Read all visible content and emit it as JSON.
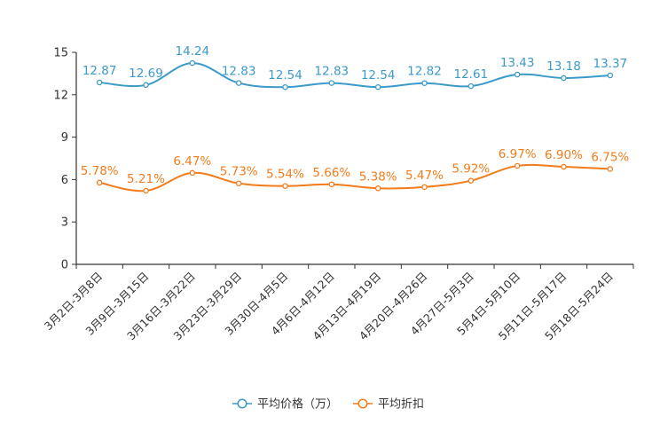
{
  "chart_data": {
    "type": "line",
    "title": "",
    "xlabel": "",
    "ylabel": "",
    "ylim": [
      0,
      15
    ],
    "yticks": [
      "0",
      "3",
      "6",
      "9",
      "12",
      "15"
    ],
    "categories": [
      "3月2日-3月8日",
      "3月9日-3月15日",
      "3月16日-3月22日",
      "3月23日-3月29日",
      "3月30日-4月5日",
      "4月6日-4月12日",
      "4月13日-4月19日",
      "4月20日-4月26日",
      "4月27日-5月3日",
      "5月4日-5月10日",
      "5月11日-5月17日",
      "5月18日-5月24日"
    ],
    "series": [
      {
        "name": "平均价格（万）",
        "color": "#3b9ac9",
        "values": [
          12.87,
          12.69,
          14.24,
          12.83,
          12.54,
          12.83,
          12.54,
          12.82,
          12.61,
          13.43,
          13.18,
          13.37
        ],
        "labels": [
          "12.87",
          "12.69",
          "14.24",
          "12.83",
          "12.54",
          "12.83",
          "12.54",
          "12.82",
          "12.61",
          "13.43",
          "13.18",
          "13.37"
        ]
      },
      {
        "name": "平均折扣",
        "color": "#f27c1c",
        "values": [
          5.78,
          5.21,
          6.47,
          5.73,
          5.54,
          5.66,
          5.38,
          5.47,
          5.92,
          6.97,
          6.9,
          6.75
        ],
        "labels": [
          "5.78%",
          "5.21%",
          "6.47%",
          "5.73%",
          "5.54%",
          "5.66%",
          "5.38%",
          "5.47%",
          "5.92%",
          "6.97%",
          "6.90%",
          "6.75%"
        ]
      }
    ],
    "legend_position": "bottom-center",
    "grid": false
  }
}
